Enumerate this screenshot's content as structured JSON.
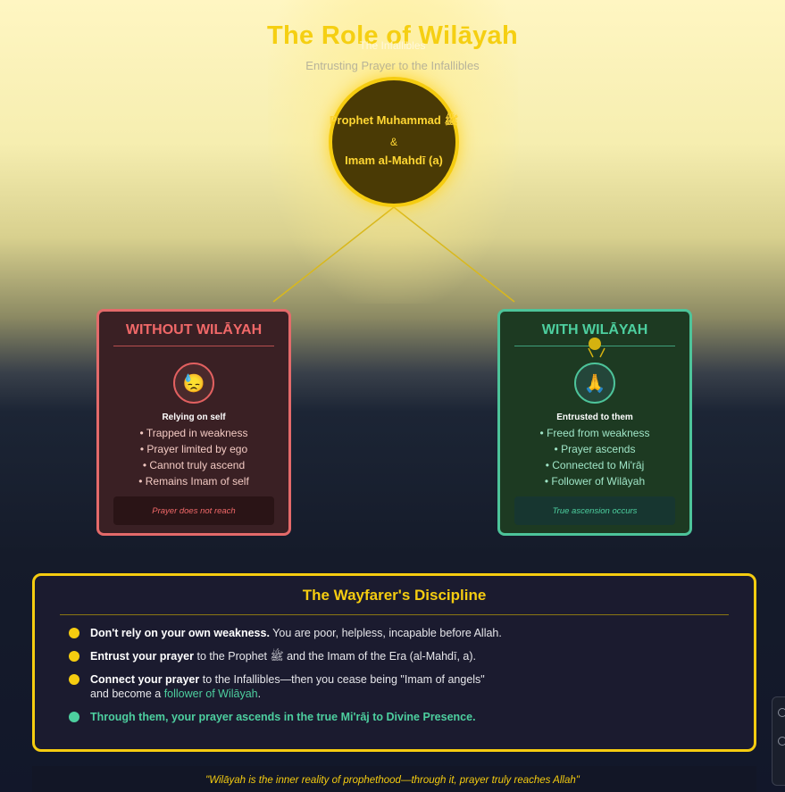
{
  "header": {
    "title": "The Role of Wilāyah",
    "subtitle": "Entrusting Prayer to the Infallibles"
  },
  "center": {
    "caption": "The Infallibles",
    "line1": "Prophet Muhammad ﷺ",
    "amp": "&",
    "line2": "Imam al-Mahdī (a)"
  },
  "without": {
    "title": "WITHOUT WILĀYAH",
    "icon": "😓",
    "lead": "Relying on self",
    "items": [
      "• Trapped in weakness",
      "• Prayer limited by ego",
      "• Cannot truly ascend",
      "• Remains Imam of self"
    ],
    "note": "Prayer does not reach"
  },
  "with": {
    "title": "WITH WILĀYAH",
    "icon": "🙏",
    "lead": "Entrusted to them",
    "items": [
      "• Freed from weakness",
      "• Prayer ascends",
      "• Connected to Mi'rāj",
      "• Follower of Wilāyah"
    ],
    "note": "True ascension occurs"
  },
  "discipline": {
    "title": "The Wayfarer's Discipline",
    "item1_bold": "Don't rely on your own weakness.",
    "item1_rest": " You are poor, helpless, incapable before Allah.",
    "item2_bold": "Entrust your prayer",
    "item2_rest": " to the Prophet ﷺ and the Imam of the Era (al-Mahdī, a).",
    "item3_bold": "Connect your prayer",
    "item3_rest": " to the Infallibles—then you cease being \"Imam of angels\"",
    "item3_line2a": "and become a ",
    "item3_green": "follower of Wilāyah",
    "item3_end": ".",
    "item4": "Through them, your prayer ascends in the true Mi'rāj to Divine Presence."
  },
  "quote": "\"Wilāyah is the inner reality of prophethood—through it, prayer truly reaches Allah\"",
  "colors": {
    "gold": "#f5cc10",
    "red": "#e46a6a",
    "green": "#4dc49a",
    "navy": "#1b1b2f"
  }
}
